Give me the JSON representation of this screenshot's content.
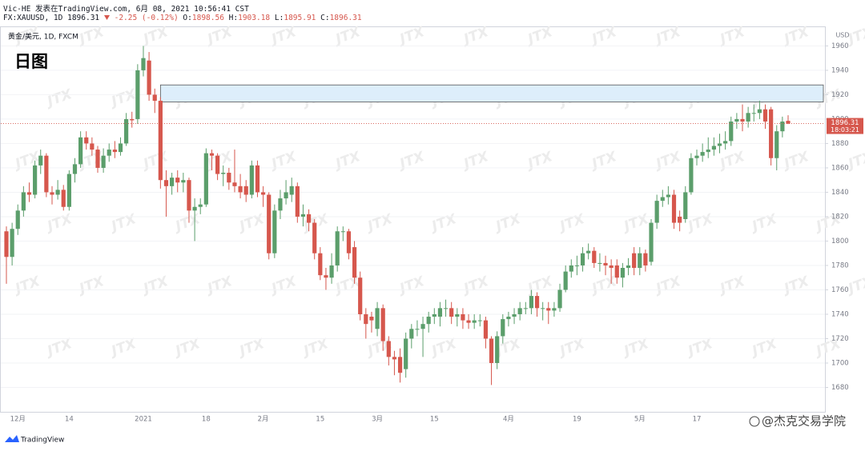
{
  "header": {
    "author": "Vic-HE 发表在TradingView.com, 6月 08, 2021 10:56:41 CST",
    "symbol": "FX:XAUUSD, 1D",
    "change": "-2.25 (-0.12%)",
    "ohlc_labels": [
      "O:",
      "H:",
      "L:",
      "C:"
    ]
  },
  "footer": {
    "brand": "TradingView",
    "credit": "@杰克交易学院"
  },
  "chart_data": {
    "type": "candlestick",
    "pane_label": "黄金/美元, 1D, FXCM",
    "label": "日图",
    "axis_unit": "USD",
    "watermark": "JTX",
    "countdown": "18:03:21",
    "up_color": "#5b9e6b",
    "down_color": "#d6574d",
    "grid": true,
    "categories": [
      null,
      null,
      "12月",
      null,
      null,
      null,
      null,
      null,
      null,
      null,
      null,
      "14",
      null,
      null,
      null,
      null,
      null,
      null,
      null,
      null,
      null,
      null,
      null,
      null,
      "2021",
      null,
      null,
      null,
      null,
      null,
      null,
      null,
      null,
      null,
      null,
      "18",
      null,
      null,
      null,
      null,
      null,
      null,
      null,
      null,
      null,
      "2月",
      null,
      null,
      null,
      null,
      null,
      null,
      null,
      null,
      null,
      "15",
      null,
      null,
      null,
      null,
      null,
      null,
      null,
      null,
      null,
      "3月",
      null,
      null,
      null,
      null,
      null,
      null,
      null,
      null,
      null,
      "15",
      null,
      null,
      null,
      null,
      null,
      null,
      null,
      null,
      null,
      null,
      null,
      null,
      "4月",
      null,
      null,
      null,
      null,
      null,
      null,
      null,
      null,
      null,
      null,
      null,
      "19",
      null,
      null,
      null,
      null,
      null,
      null,
      null,
      null,
      null,
      null,
      "5月",
      null,
      null,
      null,
      null,
      null,
      null,
      null,
      null,
      null,
      "17",
      null,
      null,
      null,
      null,
      null,
      null,
      null,
      null,
      null,
      null,
      null,
      null,
      null,
      null,
      null,
      null
    ],
    "open": [
      1808,
      1787,
      1810,
      1825,
      1840,
      1838,
      1862,
      1870,
      1840,
      1838,
      1842,
      1828,
      1855,
      1863,
      1885,
      1880,
      1875,
      1860,
      1870,
      1875,
      1873,
      1880,
      1900,
      1900,
      1940,
      1948,
      1920,
      1915,
      1850,
      1845,
      1852,
      1848,
      1850,
      1825,
      1828,
      1830,
      1872,
      1870,
      1855,
      1856,
      1848,
      1845,
      1845,
      1838,
      1862,
      1840,
      1838,
      1790,
      1825,
      1835,
      1838,
      1845,
      1820,
      1822,
      1815,
      1790,
      1772,
      1770,
      1780,
      1808,
      1808,
      1795,
      1770,
      1740,
      1738,
      1728,
      1745,
      1718,
      1705,
      1705,
      1695,
      1720,
      1728,
      1728,
      1732,
      1738,
      1738,
      1745,
      1745,
      1738,
      1740,
      1735,
      1733,
      1735,
      1735,
      1720,
      1700,
      1722,
      1736,
      1738,
      1740,
      1745,
      1745,
      1755,
      1745,
      1745,
      1743,
      1745,
      1760,
      1775,
      1780,
      1780,
      1790,
      1792,
      1782,
      1782,
      1780,
      1780,
      1770,
      1778,
      1790,
      1778,
      1790,
      1783,
      1815,
      1833,
      1836,
      1838,
      1820,
      1818,
      1840,
      1868,
      1870,
      1873,
      1875,
      1878,
      1880,
      1882,
      1898,
      1900,
      1898,
      1905,
      1905,
      1908,
      1908,
      1868,
      1890,
      1898.56
    ],
    "high": [
      1812,
      1815,
      1830,
      1845,
      1848,
      1866,
      1875,
      1872,
      1845,
      1850,
      1846,
      1858,
      1868,
      1890,
      1890,
      1885,
      1878,
      1876,
      1880,
      1882,
      1885,
      1905,
      1906,
      1945,
      1960,
      1955,
      1925,
      1918,
      1858,
      1856,
      1858,
      1856,
      1852,
      1835,
      1835,
      1876,
      1875,
      1872,
      1862,
      1860,
      1875,
      1855,
      1850,
      1866,
      1866,
      1845,
      1840,
      1830,
      1842,
      1850,
      1852,
      1848,
      1830,
      1826,
      1818,
      1795,
      1778,
      1790,
      1812,
      1812,
      1810,
      1800,
      1775,
      1745,
      1742,
      1750,
      1748,
      1722,
      1710,
      1712,
      1725,
      1732,
      1735,
      1738,
      1742,
      1745,
      1750,
      1752,
      1750,
      1745,
      1745,
      1740,
      1740,
      1740,
      1738,
      1722,
      1726,
      1740,
      1742,
      1745,
      1750,
      1750,
      1760,
      1758,
      1750,
      1750,
      1750,
      1765,
      1780,
      1785,
      1788,
      1795,
      1798,
      1795,
      1790,
      1788,
      1785,
      1785,
      1782,
      1786,
      1795,
      1795,
      1793,
      1818,
      1838,
      1842,
      1845,
      1842,
      1825,
      1845,
      1872,
      1875,
      1880,
      1885,
      1885,
      1888,
      1890,
      1902,
      1905,
      1912,
      1910,
      1912,
      1915,
      1912,
      1910,
      1895,
      1902,
      1903.18
    ],
    "low": [
      1765,
      1780,
      1805,
      1820,
      1832,
      1835,
      1855,
      1836,
      1830,
      1834,
      1825,
      1825,
      1848,
      1860,
      1875,
      1870,
      1856,
      1856,
      1865,
      1868,
      1870,
      1878,
      1893,
      1896,
      1935,
      1915,
      1905,
      1843,
      1820,
      1838,
      1840,
      1840,
      1815,
      1800,
      1822,
      1828,
      1858,
      1850,
      1845,
      1842,
      1840,
      1835,
      1832,
      1835,
      1836,
      1828,
      1785,
      1786,
      1818,
      1830,
      1832,
      1815,
      1812,
      1808,
      1785,
      1768,
      1760,
      1765,
      1775,
      1800,
      1785,
      1765,
      1735,
      1720,
      1725,
      1722,
      1710,
      1698,
      1690,
      1684,
      1688,
      1712,
      1722,
      1705,
      1725,
      1732,
      1730,
      1738,
      1732,
      1730,
      1728,
      1728,
      1728,
      1730,
      1712,
      1682,
      1695,
      1716,
      1730,
      1732,
      1735,
      1740,
      1740,
      1738,
      1735,
      1732,
      1738,
      1742,
      1758,
      1770,
      1772,
      1775,
      1785,
      1778,
      1775,
      1772,
      1765,
      1765,
      1762,
      1772,
      1772,
      1772,
      1775,
      1780,
      1810,
      1828,
      1830,
      1810,
      1808,
      1815,
      1838,
      1862,
      1865,
      1868,
      1870,
      1872,
      1875,
      1878,
      1892,
      1890,
      1893,
      1898,
      1900,
      1892,
      1862,
      1858,
      1885,
      1895.91
    ],
    "close": [
      1787,
      1810,
      1825,
      1840,
      1838,
      1862,
      1870,
      1840,
      1838,
      1842,
      1828,
      1855,
      1863,
      1885,
      1880,
      1875,
      1860,
      1870,
      1875,
      1873,
      1880,
      1900,
      1899,
      1940,
      1950,
      1920,
      1915,
      1850,
      1845,
      1852,
      1848,
      1850,
      1825,
      1828,
      1830,
      1872,
      1870,
      1855,
      1856,
      1848,
      1845,
      1840,
      1838,
      1862,
      1840,
      1838,
      1790,
      1825,
      1835,
      1840,
      1845,
      1820,
      1822,
      1815,
      1790,
      1772,
      1770,
      1780,
      1808,
      1808,
      1790,
      1770,
      1740,
      1732,
      1735,
      1745,
      1718,
      1705,
      1703,
      1692,
      1720,
      1728,
      1728,
      1732,
      1738,
      1740,
      1745,
      1745,
      1738,
      1740,
      1735,
      1733,
      1735,
      1735,
      1720,
      1700,
      1722,
      1736,
      1738,
      1740,
      1745,
      1745,
      1755,
      1745,
      1745,
      1743,
      1745,
      1760,
      1775,
      1780,
      1780,
      1790,
      1792,
      1782,
      1782,
      1780,
      1778,
      1770,
      1778,
      1780,
      1778,
      1790,
      1780,
      1815,
      1833,
      1836,
      1838,
      1815,
      1815,
      1840,
      1868,
      1870,
      1873,
      1875,
      1878,
      1880,
      1882,
      1898,
      1900,
      1898,
      1905,
      1905,
      1908,
      1898,
      1868,
      1890,
      1898,
      1896.31
    ],
    "zone": {
      "from": 1914,
      "to": 1928,
      "color": "#ddeefb"
    },
    "ylim": [
      1660,
      1976
    ],
    "yticks": [
      1680,
      1700,
      1720,
      1740,
      1760,
      1780,
      1800,
      1820,
      1840,
      1860,
      1880,
      1900,
      1920,
      1940,
      1960
    ]
  }
}
